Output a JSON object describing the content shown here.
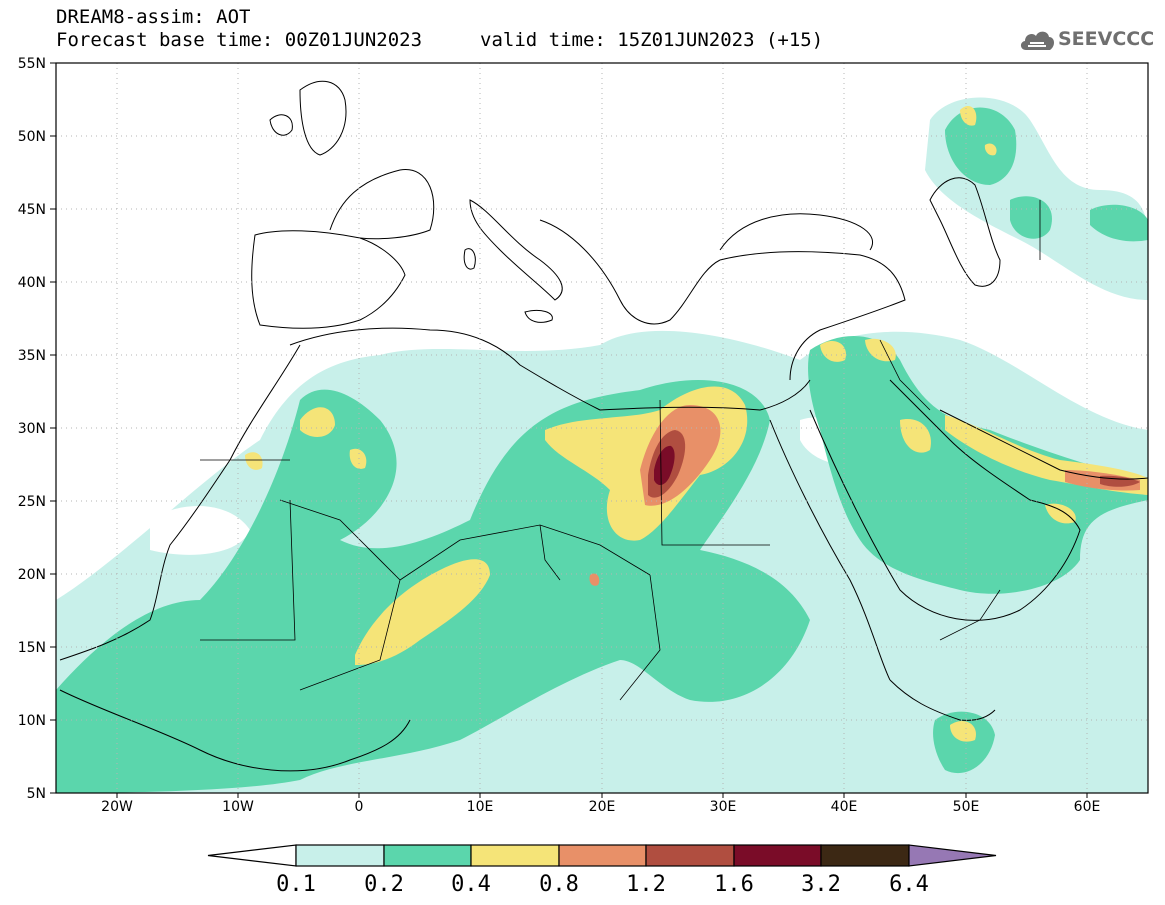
{
  "header": {
    "title_line1": "DREAM8-assim: AOT",
    "title_line2": "Forecast base time: 00Z01JUN2023",
    "valid_time": "valid time: 15Z01JUN2023 (+15)",
    "logo_text": "SEEVCCC",
    "logo_icon": "cloud-icon"
  },
  "map": {
    "variable": "AOT",
    "lon_range": [
      -25,
      65
    ],
    "lat_range": [
      5,
      55
    ],
    "lat_ticks": [
      "55N",
      "50N",
      "45N",
      "40N",
      "35N",
      "30N",
      "25N",
      "20N",
      "15N",
      "10N",
      "5N"
    ],
    "lon_ticks": [
      "20W",
      "10W",
      "0",
      "10E",
      "20E",
      "30E",
      "40E",
      "50E",
      "60E"
    ]
  },
  "colorbar": {
    "labels": [
      "0.1",
      "0.2",
      "0.4",
      "0.8",
      "1.2",
      "1.6",
      "3.2",
      "6.4"
    ],
    "colors": [
      "#c8f0ea",
      "#5bd6ac",
      "#f5e478",
      "#e89068",
      "#b04e40",
      "#7a0c28",
      "#3c2814",
      "#9678b4"
    ]
  }
}
